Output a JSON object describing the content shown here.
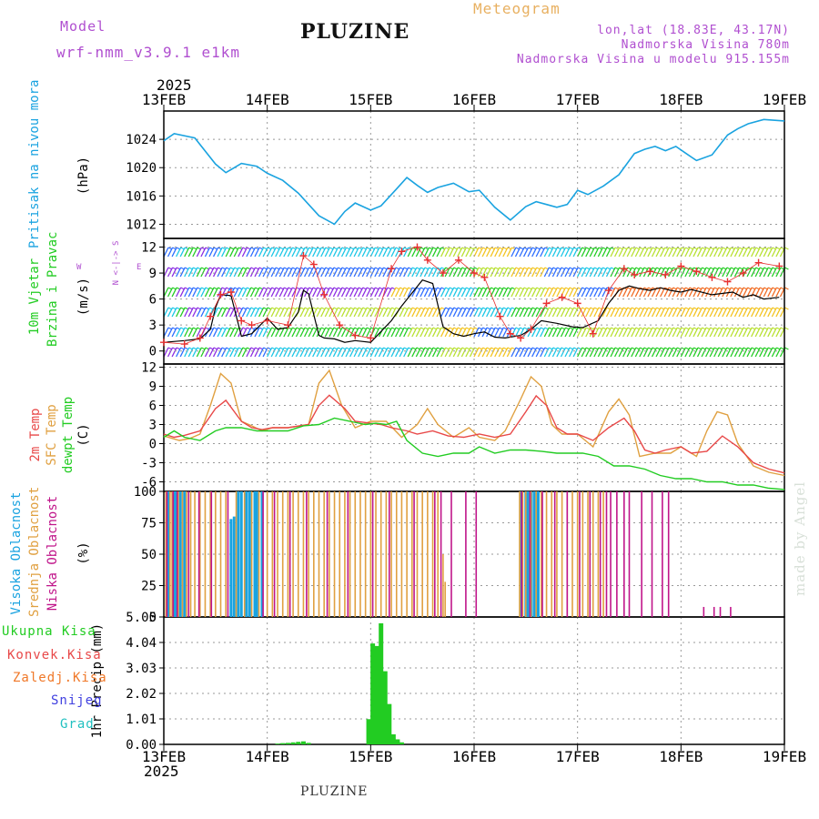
{
  "header": {
    "model_label": "Model",
    "model_name": "wrf-nmm_v3.9.1 e1km",
    "station": "PLUZINE",
    "product": "Meteogram",
    "coords": "lon,lat (18.83E, 43.17N)",
    "elevation": "Nadmorska Visina 780m",
    "model_elevation": "Nadmorska Visina u modelu 915.155m"
  },
  "time_axis": {
    "year": "2025",
    "ticks": [
      "13FEB",
      "14FEB",
      "15FEB",
      "16FEB",
      "17FEB",
      "18FEB",
      "19FEB"
    ]
  },
  "footer": {
    "station": "PLUZINE",
    "credit": "made by Angel"
  },
  "colors": {
    "pressure": "#1aa3e0",
    "wind_speed": "#000000",
    "gust": "#e83030",
    "temp_2m": "#e84848",
    "temp_sfc": "#e0a040",
    "dewpoint": "#22cc22",
    "high_cloud": "#1aa3e0",
    "mid_cloud": "#e0a040",
    "low_cloud": "#c0158a",
    "precip_total": "#22cc22"
  },
  "panels": {
    "pressure": {
      "label": "Pritisak na nivou mora",
      "unit": "(hPa)"
    },
    "wind": {
      "label1": "10m Vjetar",
      "label2": "Brzina i Pravac",
      "unit": "(m/s)",
      "compass_ns": "N <-|-> S",
      "compass_w": "W",
      "compass_e": "E"
    },
    "temp": {
      "label1": "2m Temp",
      "label2": "SFC Temp",
      "label3": "dewpt Temp",
      "unit": "(C)"
    },
    "cloud": {
      "label1": "Visoka Oblacnost",
      "label2": "Srednja Oblacnost",
      "label3": "Niska Oblacnost",
      "unit": "(%)"
    },
    "precip": {
      "unit": "1hr Precip (mm)",
      "legend": [
        "Ukupna Kisa",
        "Konvek.Kisa",
        "Zaledj.Kisa",
        "Snijeg",
        "Grad"
      ]
    }
  },
  "chart_data": [
    {
      "type": "line",
      "title": "",
      "ylabel": "(hPa)",
      "ylim": [
        1010,
        1028
      ],
      "yticks": [
        1012,
        1016,
        1020,
        1024
      ],
      "xlim": [
        0,
        6
      ],
      "series": [
        {
          "name": "Pritisak na nivou mora",
          "x": [
            0,
            0.1,
            0.3,
            0.5,
            0.6,
            0.75,
            0.9,
            1.0,
            1.15,
            1.3,
            1.5,
            1.65,
            1.75,
            1.85,
            2.0,
            2.1,
            2.25,
            2.35,
            2.45,
            2.55,
            2.65,
            2.8,
            2.95,
            3.05,
            3.2,
            3.35,
            3.5,
            3.6,
            3.7,
            3.8,
            3.9,
            4.0,
            4.1,
            4.25,
            4.4,
            4.55,
            4.65,
            4.75,
            4.85,
            4.95,
            5.05,
            5.15,
            5.3,
            5.45,
            5.55,
            5.65,
            5.8,
            6.0
          ],
          "values": [
            1023.8,
            1024.8,
            1024.2,
            1020.5,
            1019.3,
            1020.6,
            1020.2,
            1019.2,
            1018.2,
            1016.4,
            1013.2,
            1012.0,
            1013.8,
            1015.0,
            1014.0,
            1014.6,
            1017.0,
            1018.6,
            1017.5,
            1016.5,
            1017.2,
            1017.8,
            1016.6,
            1016.8,
            1014.4,
            1012.6,
            1014.5,
            1015.2,
            1014.8,
            1014.4,
            1014.8,
            1016.8,
            1016.2,
            1017.4,
            1019.0,
            1022.0,
            1022.6,
            1023.0,
            1022.4,
            1023.0,
            1022.0,
            1021.0,
            1021.8,
            1024.6,
            1025.5,
            1026.2,
            1026.8,
            1026.6
          ]
        }
      ]
    },
    {
      "type": "line",
      "title": "",
      "ylabel": "(m/s)",
      "ylim": [
        -1.5,
        13
      ],
      "yticks": [
        0,
        3,
        6,
        9,
        12
      ],
      "xlim": [
        0,
        6
      ],
      "series": [
        {
          "name": "wind speed",
          "x": [
            0,
            0.2,
            0.35,
            0.45,
            0.5,
            0.55,
            0.65,
            0.75,
            0.85,
            1.0,
            1.1,
            1.2,
            1.3,
            1.35,
            1.4,
            1.5,
            1.55,
            1.65,
            1.75,
            1.85,
            2.0,
            2.2,
            2.3,
            2.5,
            2.6,
            2.7,
            2.8,
            2.9,
            3.0,
            3.1,
            3.2,
            3.3,
            3.45,
            3.55,
            3.65,
            3.8,
            3.95,
            4.05,
            4.2,
            4.3,
            4.4,
            4.5,
            4.6,
            4.7,
            4.8,
            4.9,
            5.0,
            5.1,
            5.3,
            5.5,
            5.6,
            5.7,
            5.8,
            5.95
          ],
          "values": [
            1.0,
            1.2,
            1.4,
            2.5,
            5.0,
            6.5,
            6.4,
            1.7,
            2.0,
            3.8,
            2.5,
            2.7,
            4.5,
            7.0,
            6.6,
            1.8,
            1.5,
            1.4,
            1.0,
            1.2,
            1.0,
            3.5,
            5.2,
            8.2,
            7.8,
            2.8,
            2.0,
            1.7,
            2.0,
            2.2,
            1.6,
            1.5,
            1.8,
            2.5,
            3.5,
            3.2,
            2.8,
            2.7,
            3.5,
            5.5,
            7.0,
            7.5,
            7.2,
            7.0,
            7.3,
            7.0,
            6.8,
            7.1,
            6.5,
            6.8,
            6.2,
            6.5,
            6.0,
            6.2
          ]
        },
        {
          "name": "gust",
          "x": [
            0,
            0.2,
            0.35,
            0.45,
            0.55,
            0.65,
            0.75,
            0.85,
            1.0,
            1.2,
            1.35,
            1.45,
            1.55,
            1.7,
            1.85,
            2.0,
            2.2,
            2.3,
            2.45,
            2.55,
            2.7,
            2.85,
            3.0,
            3.1,
            3.25,
            3.35,
            3.45,
            3.55,
            3.7,
            3.85,
            4.0,
            4.15,
            4.3,
            4.45,
            4.55,
            4.7,
            4.85,
            5.0,
            5.15,
            5.3,
            5.45,
            5.6,
            5.75,
            5.95
          ],
          "values": [
            1.0,
            0.8,
            1.5,
            4.0,
            6.5,
            6.8,
            3.5,
            3.0,
            3.5,
            3.0,
            11.0,
            10.0,
            6.5,
            3.0,
            1.8,
            1.5,
            9.5,
            11.5,
            12.0,
            10.5,
            9.0,
            10.5,
            9.0,
            8.5,
            4.0,
            2.0,
            1.5,
            2.5,
            5.5,
            6.2,
            5.5,
            2.0,
            7.0,
            9.5,
            8.8,
            9.2,
            8.8,
            9.8,
            9.2,
            8.5,
            8.0,
            9.0,
            10.2,
            9.8
          ]
        }
      ]
    },
    {
      "type": "line",
      "title": "",
      "ylabel": "(C)",
      "ylim": [
        -7.5,
        12.5
      ],
      "yticks": [
        -6,
        -3,
        0,
        3,
        6,
        9,
        12
      ],
      "xlim": [
        0,
        6
      ],
      "series": [
        {
          "name": "2m Temp",
          "x": [
            0,
            0.1,
            0.2,
            0.35,
            0.5,
            0.6,
            0.75,
            0.85,
            0.95,
            1.05,
            1.2,
            1.4,
            1.5,
            1.6,
            1.75,
            1.85,
            2.0,
            2.1,
            2.2,
            2.35,
            2.45,
            2.6,
            2.75,
            2.9,
            3.05,
            3.2,
            3.35,
            3.5,
            3.6,
            3.7,
            3.8,
            3.9,
            4.0,
            4.15,
            4.3,
            4.45,
            4.55,
            4.65,
            4.75,
            4.85,
            5.0,
            5.1,
            5.25,
            5.4,
            5.55,
            5.7,
            5.85,
            6.0
          ],
          "values": [
            1.5,
            1.0,
            1.3,
            2.0,
            5.5,
            6.8,
            3.5,
            2.5,
            2.2,
            2.5,
            2.5,
            3.0,
            6.0,
            7.6,
            5.5,
            3.5,
            3.2,
            3.0,
            2.5,
            2.0,
            1.5,
            2.0,
            1.2,
            1.0,
            1.5,
            1.0,
            1.5,
            5.0,
            7.5,
            6.0,
            2.5,
            1.5,
            1.5,
            0.5,
            2.5,
            4.0,
            2.0,
            -1.0,
            -1.5,
            -1.0,
            -0.5,
            -1.5,
            -1.2,
            1.2,
            -0.5,
            -3.0,
            -4.0,
            -4.6
          ]
        },
        {
          "name": "SFC Temp",
          "x": [
            0,
            0.15,
            0.25,
            0.35,
            0.45,
            0.55,
            0.65,
            0.75,
            0.85,
            0.95,
            1.05,
            1.2,
            1.4,
            1.5,
            1.6,
            1.72,
            1.85,
            2.0,
            2.15,
            2.3,
            2.45,
            2.55,
            2.65,
            2.8,
            2.95,
            3.05,
            3.2,
            3.3,
            3.45,
            3.55,
            3.65,
            3.75,
            3.85,
            4.0,
            4.15,
            4.3,
            4.4,
            4.5,
            4.6,
            4.75,
            4.9,
            5.0,
            5.15,
            5.25,
            5.35,
            5.45,
            5.55,
            5.7,
            5.85,
            6.0
          ],
          "values": [
            1.2,
            0.5,
            0.8,
            1.5,
            6.0,
            11.0,
            9.5,
            3.5,
            2.8,
            2.0,
            2.5,
            2.5,
            3.0,
            9.5,
            11.5,
            6.0,
            2.5,
            3.5,
            3.5,
            1.0,
            3.0,
            5.5,
            3.0,
            1.0,
            2.5,
            1.0,
            0.5,
            2.0,
            7.0,
            10.5,
            9.0,
            3.0,
            1.5,
            1.5,
            -0.5,
            5.0,
            7.0,
            4.5,
            -2.0,
            -1.5,
            -1.5,
            -0.5,
            -2.0,
            2.0,
            5.0,
            4.5,
            0.0,
            -3.5,
            -4.5,
            -5.0
          ]
        },
        {
          "name": "dewpt Temp",
          "x": [
            0,
            0.1,
            0.2,
            0.35,
            0.5,
            0.6,
            0.75,
            0.9,
            1.05,
            1.2,
            1.35,
            1.5,
            1.65,
            1.8,
            1.95,
            2.05,
            2.15,
            2.25,
            2.35,
            2.5,
            2.65,
            2.8,
            2.95,
            3.05,
            3.2,
            3.35,
            3.5,
            3.65,
            3.8,
            3.95,
            4.05,
            4.2,
            4.35,
            4.5,
            4.65,
            4.8,
            4.95,
            5.1,
            5.25,
            5.4,
            5.55,
            5.7,
            5.85,
            6.0
          ],
          "values": [
            1.0,
            2.0,
            1.0,
            0.5,
            2.0,
            2.5,
            2.5,
            2.0,
            2.0,
            2.0,
            2.8,
            3.0,
            4.0,
            3.5,
            3.0,
            3.2,
            3.0,
            3.5,
            0.5,
            -1.5,
            -2.0,
            -1.5,
            -1.5,
            -0.5,
            -1.5,
            -1.0,
            -1.0,
            -1.2,
            -1.5,
            -1.5,
            -1.5,
            -2.0,
            -3.5,
            -3.5,
            -4.0,
            -5.0,
            -5.5,
            -5.5,
            -6.0,
            -6.0,
            -6.5,
            -6.5,
            -7.0,
            -7.2
          ]
        }
      ]
    },
    {
      "type": "bar",
      "title": "",
      "ylabel": "(%)",
      "ylim": [
        0,
        100
      ],
      "yticks": [
        0,
        25,
        50,
        75,
        100
      ],
      "xlim": [
        0,
        6
      ],
      "series": [
        {
          "name": "Visoka Oblacnost",
          "x": [
            0.04,
            0.1,
            0.12,
            0.16,
            0.2,
            0.65,
            0.68,
            0.72,
            0.75,
            0.8,
            0.83,
            0.88,
            0.9,
            0.95,
            3.45,
            3.5,
            3.52,
            3.55,
            3.58,
            3.62
          ],
          "values": [
            100,
            100,
            100,
            100,
            100,
            78,
            80,
            100,
            100,
            100,
            100,
            100,
            100,
            100,
            100,
            100,
            100,
            100,
            100,
            100
          ]
        },
        {
          "name": "Srednja Oblacnost",
          "x": [
            0.02,
            0.06,
            0.08,
            0.14,
            0.18,
            0.22,
            0.26,
            0.3,
            0.35,
            0.4,
            0.45,
            0.5,
            0.55,
            0.6,
            0.7,
            0.78,
            0.85,
            0.92,
            1.0,
            1.05,
            1.1,
            1.15,
            1.2,
            1.25,
            1.3,
            1.35,
            1.4,
            1.45,
            1.5,
            1.55,
            1.6,
            1.65,
            1.7,
            1.75,
            1.8,
            1.85,
            1.9,
            1.95,
            2.0,
            2.05,
            2.1,
            2.15,
            2.2,
            2.25,
            2.3,
            2.35,
            2.4,
            2.45,
            2.5,
            2.55,
            2.6,
            2.65,
            2.7,
            2.72,
            3.44,
            3.47,
            3.5,
            3.55,
            3.6,
            3.65,
            3.7,
            3.75,
            3.8,
            3.85,
            3.9,
            3.95,
            4.0,
            4.05,
            4.1,
            4.15,
            4.2,
            4.25
          ],
          "values": [
            100,
            100,
            100,
            100,
            100,
            100,
            100,
            100,
            100,
            100,
            100,
            100,
            100,
            100,
            100,
            100,
            100,
            100,
            100,
            100,
            100,
            100,
            100,
            100,
            100,
            100,
            100,
            100,
            100,
            100,
            100,
            100,
            100,
            100,
            100,
            100,
            100,
            100,
            100,
            100,
            100,
            100,
            100,
            100,
            100,
            100,
            100,
            100,
            100,
            100,
            100,
            100,
            50,
            28,
            100,
            100,
            100,
            100,
            100,
            100,
            100,
            100,
            100,
            100,
            100,
            100,
            100,
            100,
            100,
            100,
            100,
            100
          ]
        },
        {
          "name": "Niska Oblacnost",
          "x": [
            0.03,
            0.09,
            0.13,
            0.24,
            0.34,
            0.46,
            0.62,
            0.96,
            1.07,
            1.22,
            1.38,
            1.58,
            1.78,
            2.02,
            2.18,
            2.42,
            2.62,
            2.68,
            2.78,
            2.92,
            3.02,
            3.46,
            3.54,
            3.66,
            3.78,
            3.9,
            4.02,
            4.12,
            4.22,
            4.28,
            4.32,
            4.38,
            4.45,
            4.5,
            4.62,
            4.72,
            4.82,
            4.88,
            5.22,
            5.32,
            5.38,
            5.48
          ],
          "values": [
            100,
            100,
            100,
            100,
            100,
            100,
            100,
            100,
            100,
            100,
            100,
            100,
            100,
            100,
            100,
            100,
            100,
            100,
            100,
            100,
            100,
            100,
            100,
            100,
            100,
            100,
            100,
            100,
            100,
            100,
            100,
            100,
            100,
            100,
            100,
            100,
            100,
            100,
            8,
            8,
            8,
            8
          ]
        }
      ]
    },
    {
      "type": "bar",
      "title": "",
      "ylabel": "1hr Precip (mm)",
      "ylim": [
        0,
        5.05
      ],
      "yticks": [
        0,
        1.01,
        2.02,
        3.03,
        4.04,
        5.05
      ],
      "xlim": [
        0,
        6
      ],
      "series": [
        {
          "name": "Ukupna Kisa",
          "x": [
            1.1,
            1.15,
            1.2,
            1.25,
            1.3,
            1.35,
            1.4,
            1.98,
            2.02,
            2.06,
            2.1,
            2.14,
            2.18,
            2.22,
            2.26,
            2.3
          ],
          "values": [
            0.03,
            0.05,
            0.06,
            0.08,
            0.1,
            0.12,
            0.06,
            1.0,
            4.0,
            3.9,
            4.8,
            2.9,
            1.6,
            0.4,
            0.2,
            0.08
          ]
        }
      ]
    }
  ]
}
